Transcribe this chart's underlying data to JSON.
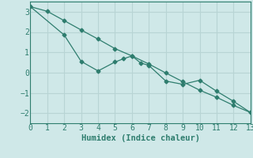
{
  "line1_x": [
    0,
    1,
    2,
    3,
    4,
    5,
    6,
    7,
    8,
    9,
    10,
    11,
    12,
    13
  ],
  "line1_y": [
    3.25,
    3.02,
    2.56,
    2.1,
    1.65,
    1.18,
    0.82,
    0.42,
    -0.02,
    -0.45,
    -0.87,
    -1.22,
    -1.62,
    -1.97
  ],
  "line2_x": [
    0,
    2,
    3,
    4,
    5,
    5.5,
    6,
    6.5,
    7,
    8,
    9,
    10,
    11,
    12,
    13
  ],
  "line2_y": [
    3.25,
    1.85,
    0.55,
    0.08,
    0.52,
    0.68,
    0.82,
    0.48,
    0.35,
    -0.42,
    -0.58,
    -0.38,
    -0.92,
    -1.42,
    -1.97
  ],
  "color": "#2e7d6e",
  "background_color": "#cfe8e8",
  "grid_color": "#b8d4d4",
  "xlabel": "Humidex (Indice chaleur)",
  "xlim": [
    0,
    13
  ],
  "ylim": [
    -2.5,
    3.5
  ],
  "xticks": [
    0,
    1,
    2,
    3,
    4,
    5,
    6,
    7,
    8,
    9,
    10,
    11,
    12,
    13
  ],
  "yticks": [
    -2,
    -1,
    0,
    1,
    2,
    3
  ],
  "marker": "D",
  "markersize": 2.5,
  "linewidth": 0.9,
  "xlabel_fontsize": 7.5,
  "tick_fontsize": 7
}
